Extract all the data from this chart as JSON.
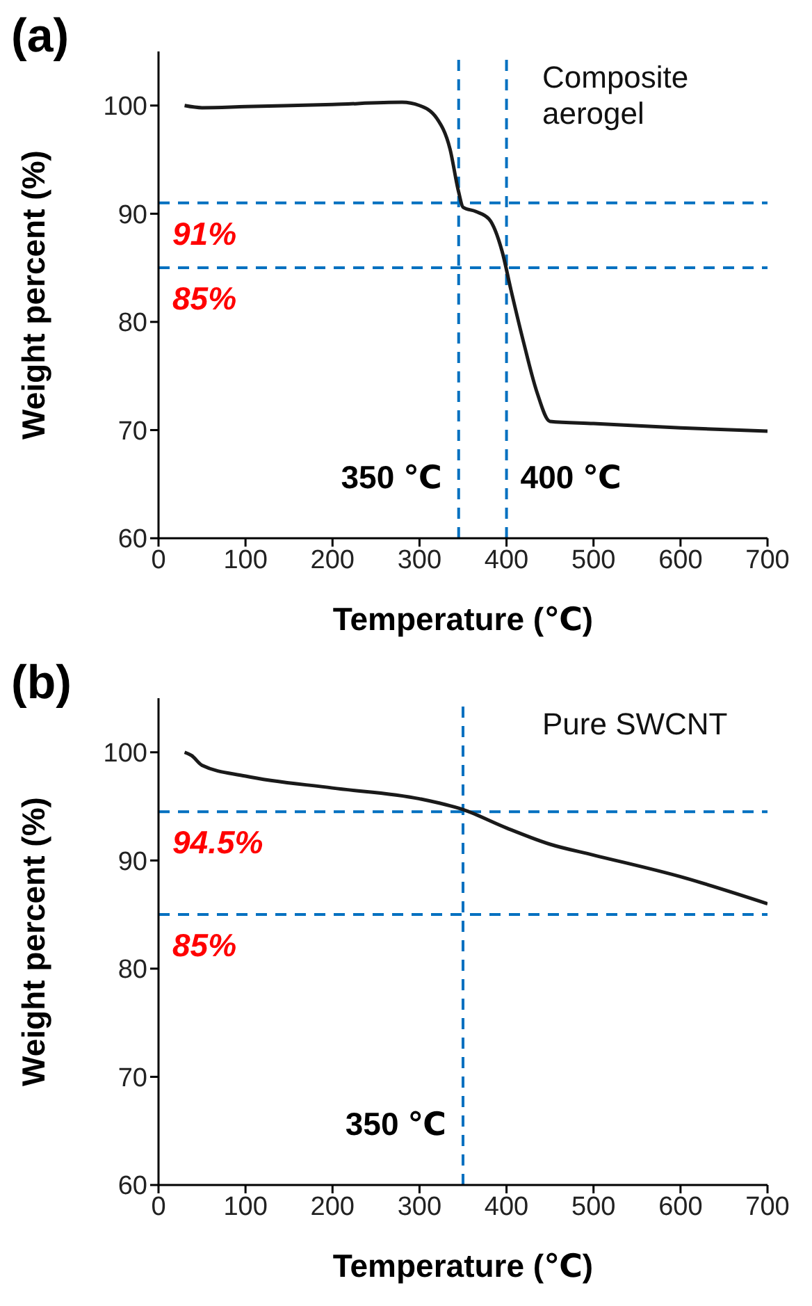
{
  "chart_data": [
    {
      "type": "line",
      "title": "(a)",
      "xlabel": "Temperature (℃)",
      "ylabel": "Weight percent (%)",
      "annotations": [
        "Composite aerogel"
      ],
      "xlim": [
        0,
        700
      ],
      "xticks": [
        0,
        100,
        200,
        300,
        400,
        500,
        600,
        700
      ],
      "ylim": [
        60,
        105
      ],
      "yticks": [
        60,
        70,
        80,
        90,
        100
      ],
      "series": [
        {
          "color": "#1a1a1a",
          "x": [
            30,
            50,
            100,
            200,
            280,
            300,
            320,
            335,
            345,
            350,
            365,
            380,
            395,
            405,
            420,
            435,
            450,
            500,
            600,
            700
          ],
          "values": [
            100,
            99.8,
            99.9,
            100.1,
            100.3,
            100,
            98.8,
            96,
            92,
            90.6,
            90.2,
            89.5,
            86.5,
            83,
            78,
            73.5,
            70.8,
            70.6,
            70.2,
            69.9
          ]
        }
      ],
      "ref_lines": [
        {
          "axis": "y",
          "value": 91,
          "label": "91%",
          "color": "#0070c0",
          "line_style": "dashed"
        },
        {
          "axis": "y",
          "value": 85,
          "label": "85%",
          "color": "#0070c0",
          "line_style": "dashed"
        },
        {
          "axis": "x",
          "value": 345,
          "label": "350 ℃",
          "color": "#0070c0",
          "line_style": "dashed"
        },
        {
          "axis": "x",
          "value": 400,
          "label": "400 ℃",
          "color": "#0070c0",
          "line_style": "dashed"
        }
      ]
    },
    {
      "type": "line",
      "title": "(b)",
      "xlabel": "Temperature (℃)",
      "ylabel": "Weight percent (%)",
      "annotations": [
        "Pure SWCNT"
      ],
      "xlim": [
        0,
        700
      ],
      "xticks": [
        0,
        100,
        200,
        300,
        400,
        500,
        600,
        700
      ],
      "ylim": [
        60,
        105
      ],
      "yticks": [
        60,
        70,
        80,
        90,
        100
      ],
      "series": [
        {
          "color": "#1a1a1a",
          "x": [
            30,
            38,
            50,
            100,
            200,
            300,
            350,
            400,
            450,
            500,
            600,
            700
          ],
          "values": [
            100,
            99.7,
            98.8,
            97.8,
            96.7,
            95.7,
            94.7,
            93,
            91.5,
            90.5,
            88.5,
            86
          ]
        }
      ],
      "ref_lines": [
        {
          "axis": "y",
          "value": 94.5,
          "label": "94.5%",
          "color": "#0070c0",
          "line_style": "dashed"
        },
        {
          "axis": "y",
          "value": 85,
          "label": "85%",
          "color": "#0070c0",
          "line_style": "dashed"
        },
        {
          "axis": "x",
          "value": 350,
          "label": "350 ℃",
          "color": "#0070c0",
          "line_style": "dashed"
        }
      ]
    }
  ]
}
